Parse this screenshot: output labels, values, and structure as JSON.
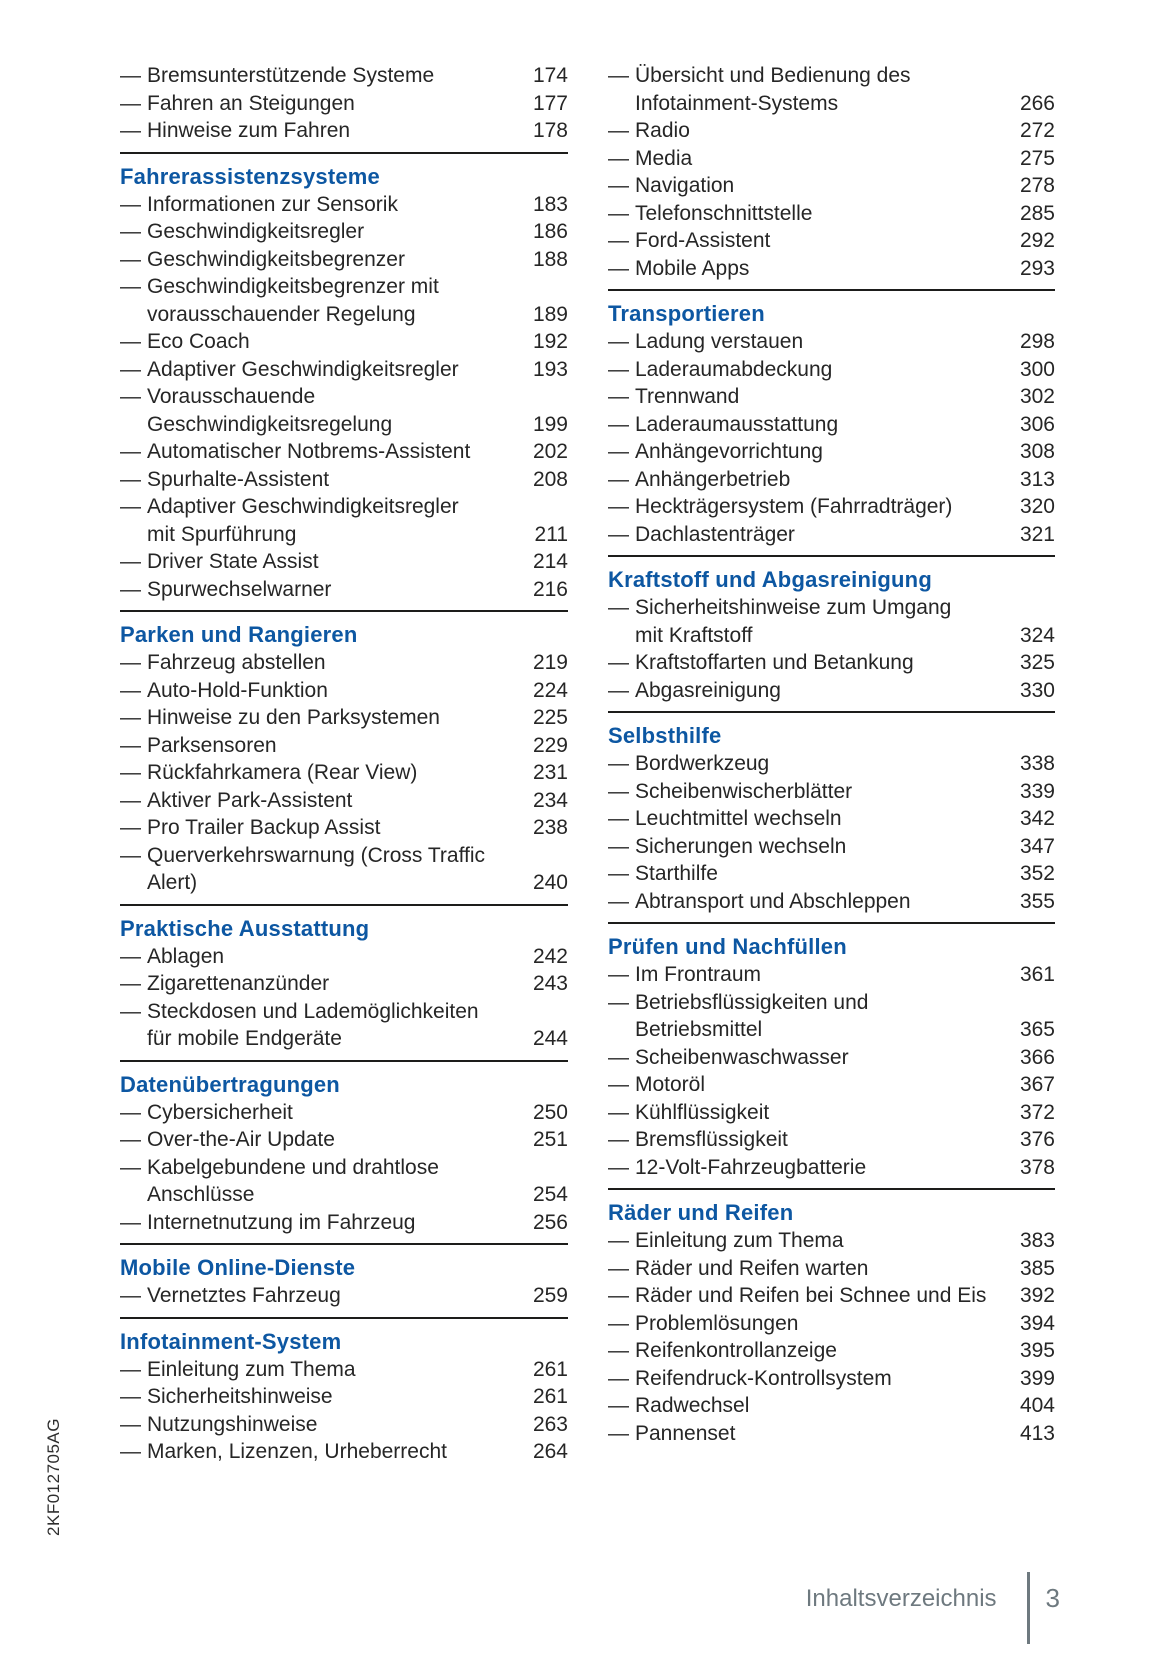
{
  "page": {
    "footer": {
      "label": "Inhaltsverzeichnis",
      "page_number": "3"
    },
    "side_code": "2KF012705AG",
    "dash_glyph": "—"
  },
  "colors": {
    "accent": "#0d57a2",
    "body_text": "#262626",
    "rule": "#1d1d1b",
    "footer_gray": "#6e797f"
  },
  "columns": [
    {
      "sections": [
        {
          "heading": null,
          "rule_above": false,
          "entries": [
            {
              "lines": [
                "Bremsunterstützende Systeme"
              ],
              "page": "174"
            },
            {
              "lines": [
                "Fahren an Steigungen"
              ],
              "page": "177"
            },
            {
              "lines": [
                "Hinweise zum Fahren"
              ],
              "page": "178"
            }
          ]
        },
        {
          "heading": "Fahrerassistenzsysteme",
          "rule_above": true,
          "entries": [
            {
              "lines": [
                "Informationen zur Sensorik"
              ],
              "page": "183"
            },
            {
              "lines": [
                "Geschwindigkeitsregler"
              ],
              "page": "186"
            },
            {
              "lines": [
                "Geschwindigkeitsbegrenzer"
              ],
              "page": "188"
            },
            {
              "lines": [
                "Geschwindigkeitsbegrenzer mit",
                "vorausschauender Regelung"
              ],
              "page": "189"
            },
            {
              "lines": [
                "Eco Coach"
              ],
              "page": "192"
            },
            {
              "lines": [
                "Adaptiver Geschwindigkeitsregler"
              ],
              "page": "193"
            },
            {
              "lines": [
                "Vorausschauende",
                "Geschwindigkeitsregelung"
              ],
              "page": "199"
            },
            {
              "lines": [
                "Automatischer Notbrems-Assistent"
              ],
              "page": "202"
            },
            {
              "lines": [
                "Spurhalte-Assistent"
              ],
              "page": "208"
            },
            {
              "lines": [
                "Adaptiver Geschwindigkeitsregler",
                "mit Spurführung"
              ],
              "page": "211"
            },
            {
              "lines": [
                "Driver State Assist"
              ],
              "page": "214"
            },
            {
              "lines": [
                "Spurwechselwarner"
              ],
              "page": "216"
            }
          ]
        },
        {
          "heading": "Parken und Rangieren",
          "rule_above": true,
          "entries": [
            {
              "lines": [
                "Fahrzeug abstellen"
              ],
              "page": "219"
            },
            {
              "lines": [
                "Auto-Hold-Funktion"
              ],
              "page": "224"
            },
            {
              "lines": [
                "Hinweise zu den Parksystemen"
              ],
              "page": "225"
            },
            {
              "lines": [
                "Parksensoren"
              ],
              "page": "229"
            },
            {
              "lines": [
                "Rückfahrkamera (Rear View)"
              ],
              "page": "231"
            },
            {
              "lines": [
                "Aktiver Park-Assistent"
              ],
              "page": "234"
            },
            {
              "lines": [
                "Pro Trailer Backup Assist"
              ],
              "page": "238"
            },
            {
              "lines": [
                "Querverkehrswarnung (Cross Traffic",
                "Alert)"
              ],
              "page": "240"
            }
          ]
        },
        {
          "heading": "Praktische Ausstattung",
          "rule_above": true,
          "entries": [
            {
              "lines": [
                "Ablagen"
              ],
              "page": "242"
            },
            {
              "lines": [
                "Zigarettenanzünder"
              ],
              "page": "243"
            },
            {
              "lines": [
                "Steckdosen und Lademöglichkeiten",
                "für mobile Endgeräte"
              ],
              "page": "244"
            }
          ]
        },
        {
          "heading": "Datenübertragungen",
          "rule_above": true,
          "entries": [
            {
              "lines": [
                "Cybersicherheit"
              ],
              "page": "250"
            },
            {
              "lines": [
                "Over-the-Air Update"
              ],
              "page": "251"
            },
            {
              "lines": [
                "Kabelgebundene und drahtlose",
                "Anschlüsse"
              ],
              "page": "254"
            },
            {
              "lines": [
                "Internetnutzung im Fahrzeug"
              ],
              "page": "256"
            }
          ]
        },
        {
          "heading": "Mobile Online-Dienste",
          "rule_above": true,
          "entries": [
            {
              "lines": [
                "Vernetztes Fahrzeug"
              ],
              "page": "259"
            }
          ]
        },
        {
          "heading": "Infotainment-System",
          "rule_above": true,
          "entries": [
            {
              "lines": [
                "Einleitung zum Thema"
              ],
              "page": "261"
            },
            {
              "lines": [
                "Sicherheitshinweise"
              ],
              "page": "261"
            },
            {
              "lines": [
                "Nutzungshinweise"
              ],
              "page": "263"
            },
            {
              "lines": [
                "Marken, Lizenzen, Urheberrecht"
              ],
              "page": "264"
            }
          ]
        }
      ]
    },
    {
      "sections": [
        {
          "heading": null,
          "rule_above": false,
          "entries": [
            {
              "lines": [
                "Übersicht und Bedienung des",
                "Infotainment-Systems"
              ],
              "page": "266"
            },
            {
              "lines": [
                "Radio"
              ],
              "page": "272"
            },
            {
              "lines": [
                "Media"
              ],
              "page": "275"
            },
            {
              "lines": [
                "Navigation"
              ],
              "page": "278"
            },
            {
              "lines": [
                "Telefonschnittstelle"
              ],
              "page": "285"
            },
            {
              "lines": [
                "Ford-Assistent"
              ],
              "page": "292"
            },
            {
              "lines": [
                "Mobile Apps"
              ],
              "page": "293"
            }
          ]
        },
        {
          "heading": "Transportieren",
          "rule_above": true,
          "entries": [
            {
              "lines": [
                "Ladung verstauen"
              ],
              "page": "298"
            },
            {
              "lines": [
                "Laderaumabdeckung"
              ],
              "page": "300"
            },
            {
              "lines": [
                "Trennwand"
              ],
              "page": "302"
            },
            {
              "lines": [
                "Laderaumausstattung"
              ],
              "page": "306"
            },
            {
              "lines": [
                "Anhängevorrichtung"
              ],
              "page": "308"
            },
            {
              "lines": [
                "Anhängerbetrieb"
              ],
              "page": "313"
            },
            {
              "lines": [
                "Heckträgersystem (Fahrradträger)"
              ],
              "page": "320"
            },
            {
              "lines": [
                "Dachlastenträger"
              ],
              "page": "321"
            }
          ]
        },
        {
          "heading": "Kraftstoff und Abgasreinigung",
          "rule_above": true,
          "entries": [
            {
              "lines": [
                "Sicherheitshinweise zum Umgang",
                "mit Kraftstoff"
              ],
              "page": "324"
            },
            {
              "lines": [
                "Kraftstoffarten und Betankung"
              ],
              "page": "325"
            },
            {
              "lines": [
                "Abgasreinigung"
              ],
              "page": "330"
            }
          ]
        },
        {
          "heading": "Selbsthilfe",
          "rule_above": true,
          "entries": [
            {
              "lines": [
                "Bordwerkzeug"
              ],
              "page": "338"
            },
            {
              "lines": [
                "Scheibenwischerblätter"
              ],
              "page": "339"
            },
            {
              "lines": [
                "Leuchtmittel wechseln"
              ],
              "page": "342"
            },
            {
              "lines": [
                "Sicherungen wechseln"
              ],
              "page": "347"
            },
            {
              "lines": [
                "Starthilfe"
              ],
              "page": "352"
            },
            {
              "lines": [
                "Abtransport und Abschleppen"
              ],
              "page": "355"
            }
          ]
        },
        {
          "heading": "Prüfen und Nachfüllen",
          "rule_above": true,
          "entries": [
            {
              "lines": [
                "Im Frontraum"
              ],
              "page": "361"
            },
            {
              "lines": [
                "Betriebsflüssigkeiten und",
                "Betriebsmittel"
              ],
              "page": "365"
            },
            {
              "lines": [
                "Scheibenwaschwasser"
              ],
              "page": "366"
            },
            {
              "lines": [
                "Motoröl"
              ],
              "page": "367"
            },
            {
              "lines": [
                "Kühlflüssigkeit"
              ],
              "page": "372"
            },
            {
              "lines": [
                "Bremsflüssigkeit"
              ],
              "page": "376"
            },
            {
              "lines": [
                "12-Volt-Fahrzeugbatterie"
              ],
              "page": "378"
            }
          ]
        },
        {
          "heading": "Räder und Reifen",
          "rule_above": true,
          "entries": [
            {
              "lines": [
                "Einleitung zum Thema"
              ],
              "page": "383"
            },
            {
              "lines": [
                "Räder und Reifen warten"
              ],
              "page": "385"
            },
            {
              "lines": [
                "Räder und Reifen bei Schnee und Eis"
              ],
              "page": "392"
            },
            {
              "lines": [
                "Problemlösungen"
              ],
              "page": "394"
            },
            {
              "lines": [
                "Reifenkontrollanzeige"
              ],
              "page": "395"
            },
            {
              "lines": [
                "Reifendruck-Kontrollsystem"
              ],
              "page": "399"
            },
            {
              "lines": [
                "Radwechsel"
              ],
              "page": "404"
            },
            {
              "lines": [
                "Pannenset"
              ],
              "page": "413"
            }
          ]
        }
      ]
    }
  ]
}
